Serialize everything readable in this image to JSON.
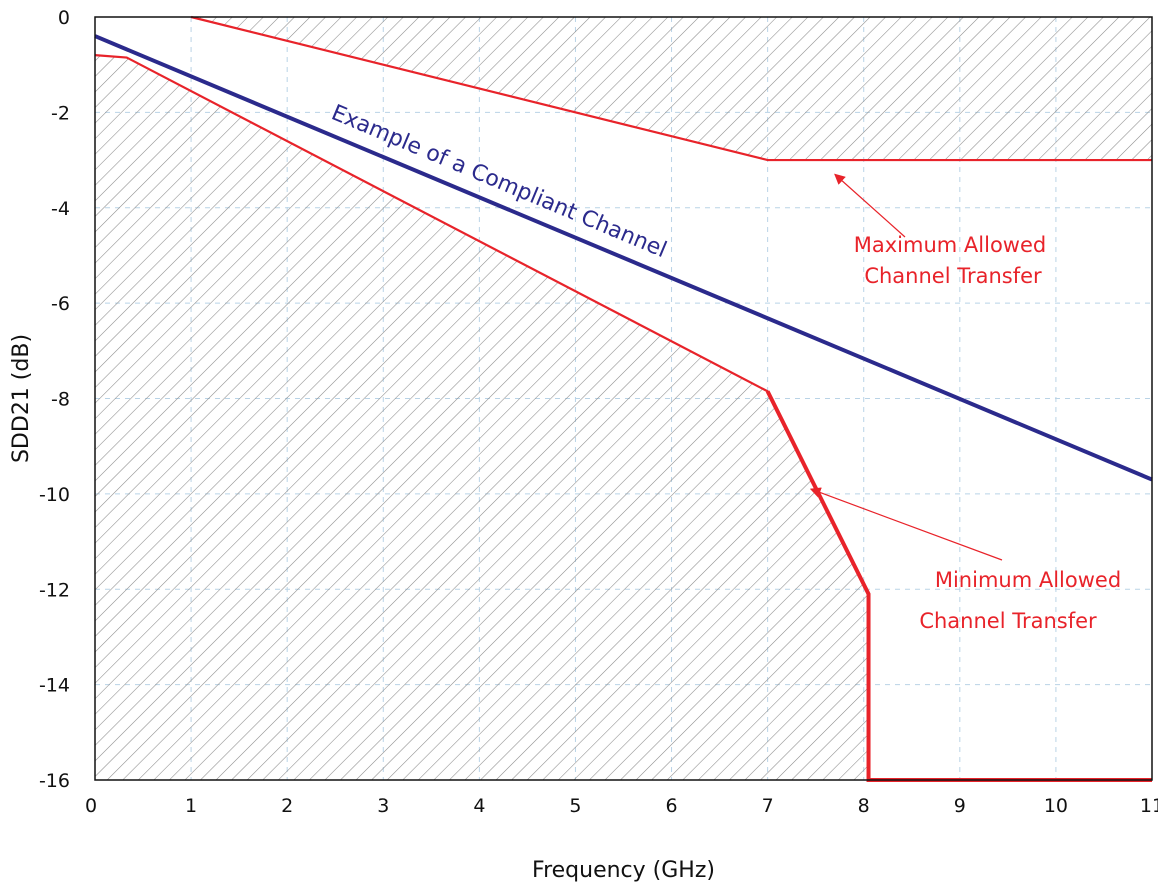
{
  "chart_data": {
    "type": "line",
    "title": "",
    "xlabel": "Frequency (GHz)",
    "ylabel": "SDD21 (dB)",
    "xlim": [
      0,
      11
    ],
    "ylim": [
      -16,
      0
    ],
    "x_ticks": [
      0,
      1,
      2,
      3,
      4,
      5,
      6,
      7,
      8,
      9,
      10,
      11
    ],
    "x_tick_labels": [
      "0",
      "1",
      "2",
      "3",
      "4",
      "5",
      "6",
      "7",
      "8",
      "9",
      "10",
      "11"
    ],
    "y_ticks": [
      0,
      -2,
      -4,
      -6,
      -8,
      -10,
      -12,
      -14,
      -16
    ],
    "y_tick_labels": [
      "0",
      "-2",
      "-4",
      "-6",
      "-8",
      "-10",
      "-12",
      "-14",
      "-16"
    ],
    "grid": true,
    "series": [
      {
        "name": "Example of a Compliant Channel",
        "color": "#2b2a8c",
        "x": [
          0,
          11
        ],
        "y": [
          -0.4,
          -9.7
        ]
      },
      {
        "name": "Maximum Allowed Channel Transfer",
        "color": "#e8232a",
        "x": [
          1,
          7,
          11
        ],
        "y": [
          0,
          -3.0,
          -3.0
        ]
      },
      {
        "name": "Minimum Allowed Channel Transfer",
        "color": "#e8232a",
        "x": [
          0,
          0.33,
          7,
          8.05,
          8.05,
          11
        ],
        "y": [
          -0.8,
          -0.85,
          -7.85,
          -12.1,
          -16,
          -16
        ]
      }
    ],
    "shaded_regions": [
      {
        "bound": "above maximum allowed transfer",
        "pattern": "diagonal hatch",
        "color": "#9a9a9a"
      },
      {
        "bound": "below minimum allowed transfer",
        "pattern": "diagonal hatch",
        "color": "#9a9a9a"
      }
    ],
    "annotations": [
      {
        "text": "Example of a Compliant Channel",
        "color": "#2b2a8c"
      },
      {
        "text_lines": [
          "Maximum Allowed",
          "Channel Transfer"
        ],
        "color": "#e8232a",
        "arrow_to": [
          7.7,
          -3.3
        ]
      },
      {
        "text_lines": [
          "Minimum Allowed",
          "Channel Transfer"
        ],
        "color": "#e8232a",
        "arrow_to": [
          7.45,
          -9.9
        ]
      }
    ]
  }
}
